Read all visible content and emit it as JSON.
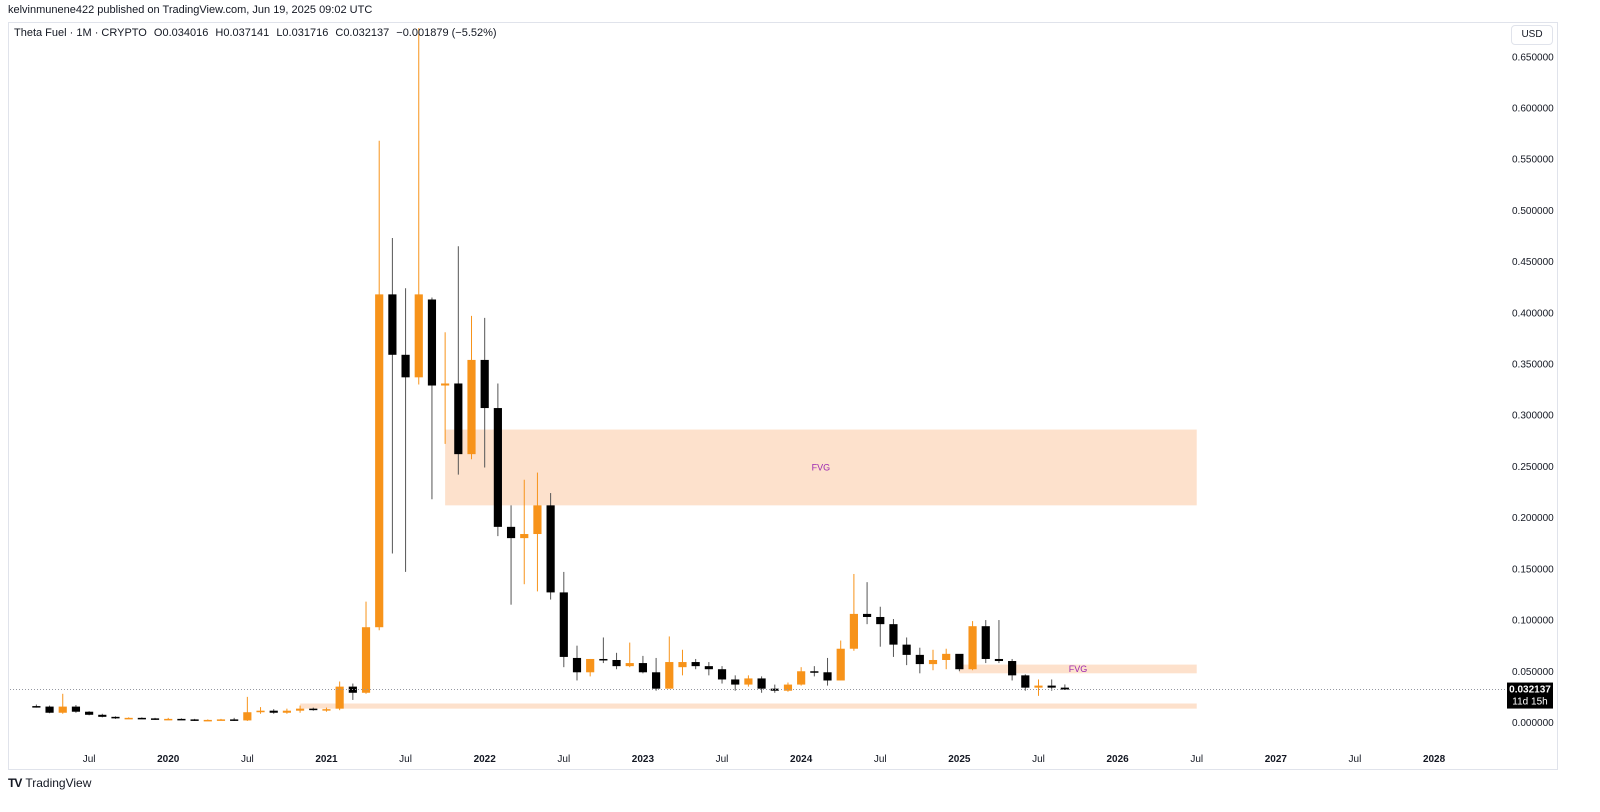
{
  "header": {
    "published": "kelvinmunene422 published on TradingView.com, Jun 19, 2025 09:02 UTC"
  },
  "legend": {
    "symbol": "Theta Fuel · 1M · CRYPTO",
    "open": "O0.034016",
    "high": "H0.037141",
    "low": "L0.031716",
    "close": "C0.032137",
    "change": "−0.001879 (−5.52%)"
  },
  "currency": "USD",
  "footer": {
    "brand": "TradingView",
    "logo": "TV"
  },
  "colors": {
    "up": "#f7931a",
    "down": "#000000",
    "zone": "#fde1cc",
    "zone_label": "#9c27b0"
  },
  "chart_data": {
    "type": "candlestick",
    "interval": "1M",
    "y_axis": {
      "range": [
        -0.022,
        0.682
      ],
      "ticks": [
        "0.650000",
        "0.600000",
        "0.550000",
        "0.500000",
        "0.450000",
        "0.400000",
        "0.350000",
        "0.300000",
        "0.250000",
        "0.200000",
        "0.150000",
        "0.100000",
        "0.050000",
        "0.000000"
      ]
    },
    "x_axis": {
      "range": [
        "2019-01",
        "2028-06"
      ],
      "labels": [
        {
          "t": "2019-07",
          "label": "Jul"
        },
        {
          "t": "2020-01",
          "label": "2020",
          "year": true
        },
        {
          "t": "2020-07",
          "label": "Jul"
        },
        {
          "t": "2021-01",
          "label": "2021",
          "year": true
        },
        {
          "t": "2021-07",
          "label": "Jul"
        },
        {
          "t": "2022-01",
          "label": "2022",
          "year": true
        },
        {
          "t": "2022-07",
          "label": "Jul"
        },
        {
          "t": "2023-01",
          "label": "2023",
          "year": true
        },
        {
          "t": "2023-07",
          "label": "Jul"
        },
        {
          "t": "2024-01",
          "label": "2024",
          "year": true
        },
        {
          "t": "2024-07",
          "label": "Jul"
        },
        {
          "t": "2025-01",
          "label": "2025",
          "year": true
        },
        {
          "t": "2025-07",
          "label": "Jul"
        },
        {
          "t": "2026-01",
          "label": "2026",
          "year": true
        },
        {
          "t": "2026-07",
          "label": "Jul"
        },
        {
          "t": "2027-01",
          "label": "2027",
          "year": true
        },
        {
          "t": "2027-07",
          "label": "Jul"
        },
        {
          "t": "2028-01",
          "label": "2028",
          "year": true
        }
      ]
    },
    "price_line": {
      "value": 0.032137,
      "label": "0.032137",
      "countdown": "11d 15h"
    },
    "zones": [
      {
        "from": "2021-10",
        "to": "2026-07",
        "top": 0.286,
        "bottom": 0.212,
        "label": "FVG"
      },
      {
        "from": "2025-01",
        "to": "2026-07",
        "top": 0.0565,
        "bottom": 0.048,
        "label": "FVG"
      },
      {
        "from": "2020-11",
        "to": "2026-07",
        "top": 0.0185,
        "bottom": 0.0135,
        "label": ""
      }
    ],
    "candles": [
      {
        "t": "2019-03",
        "o": 0.016,
        "h": 0.0175,
        "l": 0.0145,
        "c": 0.0155
      },
      {
        "t": "2019-04",
        "o": 0.0155,
        "h": 0.0165,
        "l": 0.009,
        "c": 0.0095
      },
      {
        "t": "2019-05",
        "o": 0.0095,
        "h": 0.028,
        "l": 0.0085,
        "c": 0.0155
      },
      {
        "t": "2019-06",
        "o": 0.0155,
        "h": 0.017,
        "l": 0.0095,
        "c": 0.0105
      },
      {
        "t": "2019-07",
        "o": 0.0105,
        "h": 0.011,
        "l": 0.007,
        "c": 0.0075
      },
      {
        "t": "2019-08",
        "o": 0.0075,
        "h": 0.0085,
        "l": 0.005,
        "c": 0.0055
      },
      {
        "t": "2019-09",
        "o": 0.0055,
        "h": 0.006,
        "l": 0.0035,
        "c": 0.004
      },
      {
        "t": "2019-10",
        "o": 0.004,
        "h": 0.005,
        "l": 0.0035,
        "c": 0.0045
      },
      {
        "t": "2019-11",
        "o": 0.0045,
        "h": 0.005,
        "l": 0.0035,
        "c": 0.004
      },
      {
        "t": "2019-12",
        "o": 0.004,
        "h": 0.0045,
        "l": 0.0025,
        "c": 0.003
      },
      {
        "t": "2020-01",
        "o": 0.003,
        "h": 0.0045,
        "l": 0.0025,
        "c": 0.0035
      },
      {
        "t": "2020-02",
        "o": 0.0035,
        "h": 0.004,
        "l": 0.0025,
        "c": 0.003
      },
      {
        "t": "2020-03",
        "o": 0.003,
        "h": 0.0035,
        "l": 0.0015,
        "c": 0.002
      },
      {
        "t": "2020-04",
        "o": 0.002,
        "h": 0.003,
        "l": 0.0015,
        "c": 0.0025
      },
      {
        "t": "2020-05",
        "o": 0.0025,
        "h": 0.0035,
        "l": 0.002,
        "c": 0.003
      },
      {
        "t": "2020-06",
        "o": 0.003,
        "h": 0.0045,
        "l": 0.0015,
        "c": 0.002
      },
      {
        "t": "2020-07",
        "o": 0.002,
        "h": 0.025,
        "l": 0.0015,
        "c": 0.01
      },
      {
        "t": "2020-08",
        "o": 0.01,
        "h": 0.015,
        "l": 0.0085,
        "c": 0.0115
      },
      {
        "t": "2020-09",
        "o": 0.0115,
        "h": 0.013,
        "l": 0.0085,
        "c": 0.0095
      },
      {
        "t": "2020-10",
        "o": 0.0095,
        "h": 0.0135,
        "l": 0.0085,
        "c": 0.0115
      },
      {
        "t": "2020-11",
        "o": 0.0115,
        "h": 0.0165,
        "l": 0.0095,
        "c": 0.0135
      },
      {
        "t": "2020-12",
        "o": 0.0135,
        "h": 0.0145,
        "l": 0.0115,
        "c": 0.0125
      },
      {
        "t": "2021-01",
        "o": 0.0125,
        "h": 0.0145,
        "l": 0.0105,
        "c": 0.013
      },
      {
        "t": "2021-02",
        "o": 0.0135,
        "h": 0.04,
        "l": 0.012,
        "c": 0.035
      },
      {
        "t": "2021-03",
        "o": 0.035,
        "h": 0.038,
        "l": 0.022,
        "c": 0.029
      },
      {
        "t": "2021-04",
        "o": 0.029,
        "h": 0.118,
        "l": 0.028,
        "c": 0.093
      },
      {
        "t": "2021-05",
        "o": 0.093,
        "h": 0.568,
        "l": 0.09,
        "c": 0.418
      },
      {
        "t": "2021-06",
        "o": 0.418,
        "h": 0.473,
        "l": 0.165,
        "c": 0.359
      },
      {
        "t": "2021-07",
        "o": 0.359,
        "h": 0.424,
        "l": 0.147,
        "c": 0.337
      },
      {
        "t": "2021-08",
        "o": 0.337,
        "h": 0.678,
        "l": 0.33,
        "c": 0.418
      },
      {
        "t": "2021-09",
        "o": 0.413,
        "h": 0.415,
        "l": 0.218,
        "c": 0.329
      },
      {
        "t": "2021-10",
        "o": 0.329,
        "h": 0.381,
        "l": 0.272,
        "c": 0.331
      },
      {
        "t": "2021-11",
        "o": 0.331,
        "h": 0.465,
        "l": 0.242,
        "c": 0.262
      },
      {
        "t": "2021-12",
        "o": 0.262,
        "h": 0.397,
        "l": 0.257,
        "c": 0.354
      },
      {
        "t": "2022-01",
        "o": 0.354,
        "h": 0.395,
        "l": 0.249,
        "c": 0.307
      },
      {
        "t": "2022-02",
        "o": 0.307,
        "h": 0.331,
        "l": 0.182,
        "c": 0.191
      },
      {
        "t": "2022-03",
        "o": 0.191,
        "h": 0.212,
        "l": 0.115,
        "c": 0.18
      },
      {
        "t": "2022-04",
        "o": 0.18,
        "h": 0.237,
        "l": 0.135,
        "c": 0.184
      },
      {
        "t": "2022-05",
        "o": 0.184,
        "h": 0.244,
        "l": 0.128,
        "c": 0.212
      },
      {
        "t": "2022-06",
        "o": 0.212,
        "h": 0.224,
        "l": 0.12,
        "c": 0.127
      },
      {
        "t": "2022-07",
        "o": 0.127,
        "h": 0.147,
        "l": 0.054,
        "c": 0.064
      },
      {
        "t": "2022-08",
        "o": 0.063,
        "h": 0.075,
        "l": 0.041,
        "c": 0.049
      },
      {
        "t": "2022-09",
        "o": 0.049,
        "h": 0.062,
        "l": 0.045,
        "c": 0.062
      },
      {
        "t": "2022-10",
        "o": 0.062,
        "h": 0.083,
        "l": 0.058,
        "c": 0.061
      },
      {
        "t": "2022-11",
        "o": 0.061,
        "h": 0.068,
        "l": 0.052,
        "c": 0.055
      },
      {
        "t": "2022-12",
        "o": 0.055,
        "h": 0.078,
        "l": 0.054,
        "c": 0.058
      },
      {
        "t": "2023-01",
        "o": 0.058,
        "h": 0.065,
        "l": 0.048,
        "c": 0.049
      },
      {
        "t": "2023-02",
        "o": 0.049,
        "h": 0.063,
        "l": 0.031,
        "c": 0.033
      },
      {
        "t": "2023-03",
        "o": 0.033,
        "h": 0.084,
        "l": 0.033,
        "c": 0.059
      },
      {
        "t": "2023-04",
        "o": 0.054,
        "h": 0.071,
        "l": 0.046,
        "c": 0.059
      },
      {
        "t": "2023-05",
        "o": 0.059,
        "h": 0.062,
        "l": 0.052,
        "c": 0.055
      },
      {
        "t": "2023-06",
        "o": 0.055,
        "h": 0.059,
        "l": 0.046,
        "c": 0.052
      },
      {
        "t": "2023-07",
        "o": 0.052,
        "h": 0.055,
        "l": 0.038,
        "c": 0.042
      },
      {
        "t": "2023-08",
        "o": 0.042,
        "h": 0.046,
        "l": 0.031,
        "c": 0.037
      },
      {
        "t": "2023-09",
        "o": 0.037,
        "h": 0.046,
        "l": 0.035,
        "c": 0.043
      },
      {
        "t": "2023-10",
        "o": 0.043,
        "h": 0.045,
        "l": 0.029,
        "c": 0.033
      },
      {
        "t": "2023-11",
        "o": 0.033,
        "h": 0.037,
        "l": 0.029,
        "c": 0.031
      },
      {
        "t": "2023-12",
        "o": 0.031,
        "h": 0.039,
        "l": 0.03,
        "c": 0.037
      },
      {
        "t": "2024-01",
        "o": 0.037,
        "h": 0.054,
        "l": 0.036,
        "c": 0.05
      },
      {
        "t": "2024-02",
        "o": 0.05,
        "h": 0.055,
        "l": 0.045,
        "c": 0.049
      },
      {
        "t": "2024-03",
        "o": 0.049,
        "h": 0.063,
        "l": 0.036,
        "c": 0.041
      },
      {
        "t": "2024-04",
        "o": 0.041,
        "h": 0.08,
        "l": 0.041,
        "c": 0.072
      },
      {
        "t": "2024-05",
        "o": 0.072,
        "h": 0.145,
        "l": 0.07,
        "c": 0.106
      },
      {
        "t": "2024-06",
        "o": 0.106,
        "h": 0.137,
        "l": 0.096,
        "c": 0.103
      },
      {
        "t": "2024-07",
        "o": 0.103,
        "h": 0.113,
        "l": 0.074,
        "c": 0.096
      },
      {
        "t": "2024-08",
        "o": 0.096,
        "h": 0.101,
        "l": 0.064,
        "c": 0.076
      },
      {
        "t": "2024-09",
        "o": 0.076,
        "h": 0.083,
        "l": 0.056,
        "c": 0.066
      },
      {
        "t": "2024-10",
        "o": 0.066,
        "h": 0.073,
        "l": 0.048,
        "c": 0.057
      },
      {
        "t": "2024-11",
        "o": 0.057,
        "h": 0.071,
        "l": 0.051,
        "c": 0.061
      },
      {
        "t": "2024-12",
        "o": 0.061,
        "h": 0.072,
        "l": 0.052,
        "c": 0.067
      },
      {
        "t": "2025-01",
        "o": 0.067,
        "h": 0.066,
        "l": 0.05,
        "c": 0.052
      },
      {
        "t": "2025-02",
        "o": 0.052,
        "h": 0.099,
        "l": 0.051,
        "c": 0.094
      },
      {
        "t": "2025-03",
        "o": 0.094,
        "h": 0.1,
        "l": 0.058,
        "c": 0.062
      },
      {
        "t": "2025-04",
        "o": 0.062,
        "h": 0.1,
        "l": 0.058,
        "c": 0.06
      },
      {
        "t": "2025-05",
        "o": 0.06,
        "h": 0.062,
        "l": 0.041,
        "c": 0.046
      },
      {
        "t": "2025-06",
        "o": 0.046,
        "h": 0.047,
        "l": 0.031,
        "c": 0.034
      },
      {
        "t": "2025-07",
        "o": 0.034,
        "h": 0.042,
        "l": 0.026,
        "c": 0.036
      },
      {
        "t": "2025-08",
        "o": 0.036,
        "h": 0.042,
        "l": 0.031,
        "c": 0.034
      },
      {
        "t": "2025-09",
        "o": 0.034016,
        "h": 0.037141,
        "l": 0.031716,
        "c": 0.032137
      }
    ]
  }
}
